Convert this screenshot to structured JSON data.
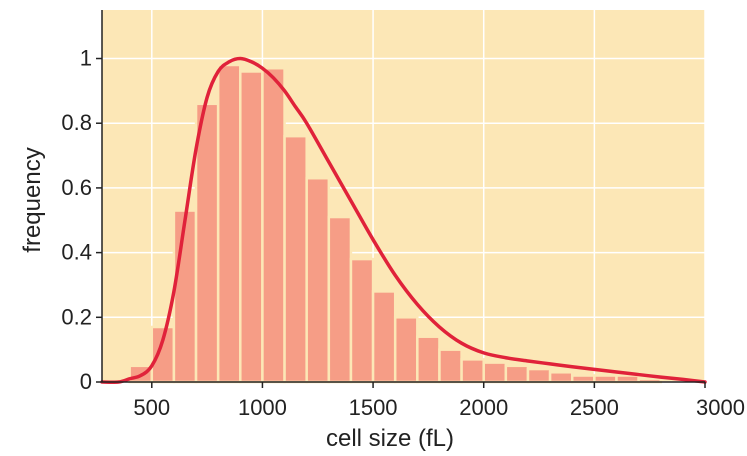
{
  "chart_data": {
    "type": "bar",
    "title": "",
    "xlabel": "cell size (fL)",
    "ylabel": "frequency",
    "xlim": [
      275,
      3000
    ],
    "ylim": [
      0,
      1.15
    ],
    "xticks": [
      500,
      1000,
      1500,
      2000,
      2500,
      3000
    ],
    "yticks": [
      0,
      0.2,
      0.4,
      0.6,
      0.8,
      1
    ],
    "ytick_labels": [
      "0",
      "0.2",
      "0.4",
      "0.6",
      "0.8",
      "1"
    ],
    "grid": true,
    "bin_width": 100,
    "bins": [
      {
        "x": 450,
        "value": 0.05
      },
      {
        "x": 550,
        "value": 0.17
      },
      {
        "x": 650,
        "value": 0.53
      },
      {
        "x": 750,
        "value": 0.86
      },
      {
        "x": 850,
        "value": 0.98
      },
      {
        "x": 950,
        "value": 0.96
      },
      {
        "x": 1050,
        "value": 0.97
      },
      {
        "x": 1150,
        "value": 0.76
      },
      {
        "x": 1250,
        "value": 0.63
      },
      {
        "x": 1350,
        "value": 0.51
      },
      {
        "x": 1450,
        "value": 0.38
      },
      {
        "x": 1550,
        "value": 0.28
      },
      {
        "x": 1650,
        "value": 0.2
      },
      {
        "x": 1750,
        "value": 0.14
      },
      {
        "x": 1850,
        "value": 0.1
      },
      {
        "x": 1950,
        "value": 0.07
      },
      {
        "x": 2050,
        "value": 0.06
      },
      {
        "x": 2150,
        "value": 0.05
      },
      {
        "x": 2250,
        "value": 0.04
      },
      {
        "x": 2350,
        "value": 0.03
      },
      {
        "x": 2450,
        "value": 0.02
      },
      {
        "x": 2550,
        "value": 0.02
      },
      {
        "x": 2650,
        "value": 0.02
      },
      {
        "x": 2750,
        "value": 0.01
      }
    ],
    "fit_curve": {
      "x": [
        275,
        350,
        400,
        450,
        500,
        550,
        600,
        650,
        700,
        750,
        800,
        850,
        900,
        950,
        1000,
        1050,
        1100,
        1150,
        1200,
        1300,
        1400,
        1500,
        1600,
        1700,
        1800,
        1900,
        2000,
        2100,
        2200,
        2300,
        2400,
        2500,
        2600,
        2700,
        2800,
        2900,
        3000
      ],
      "y": [
        0.0,
        0.0,
        0.01,
        0.02,
        0.05,
        0.13,
        0.28,
        0.5,
        0.72,
        0.88,
        0.96,
        0.99,
        1.0,
        0.99,
        0.97,
        0.94,
        0.9,
        0.85,
        0.8,
        0.68,
        0.56,
        0.44,
        0.33,
        0.24,
        0.17,
        0.12,
        0.09,
        0.075,
        0.065,
        0.056,
        0.047,
        0.039,
        0.031,
        0.023,
        0.015,
        0.008,
        0.0
      ]
    },
    "colors": {
      "background": "#fce7b6",
      "grid": "#ffffff",
      "bars": "#f69d86",
      "bar_edge": "#fce7b6",
      "curve": "#e0223a",
      "axis": "#222222"
    }
  }
}
